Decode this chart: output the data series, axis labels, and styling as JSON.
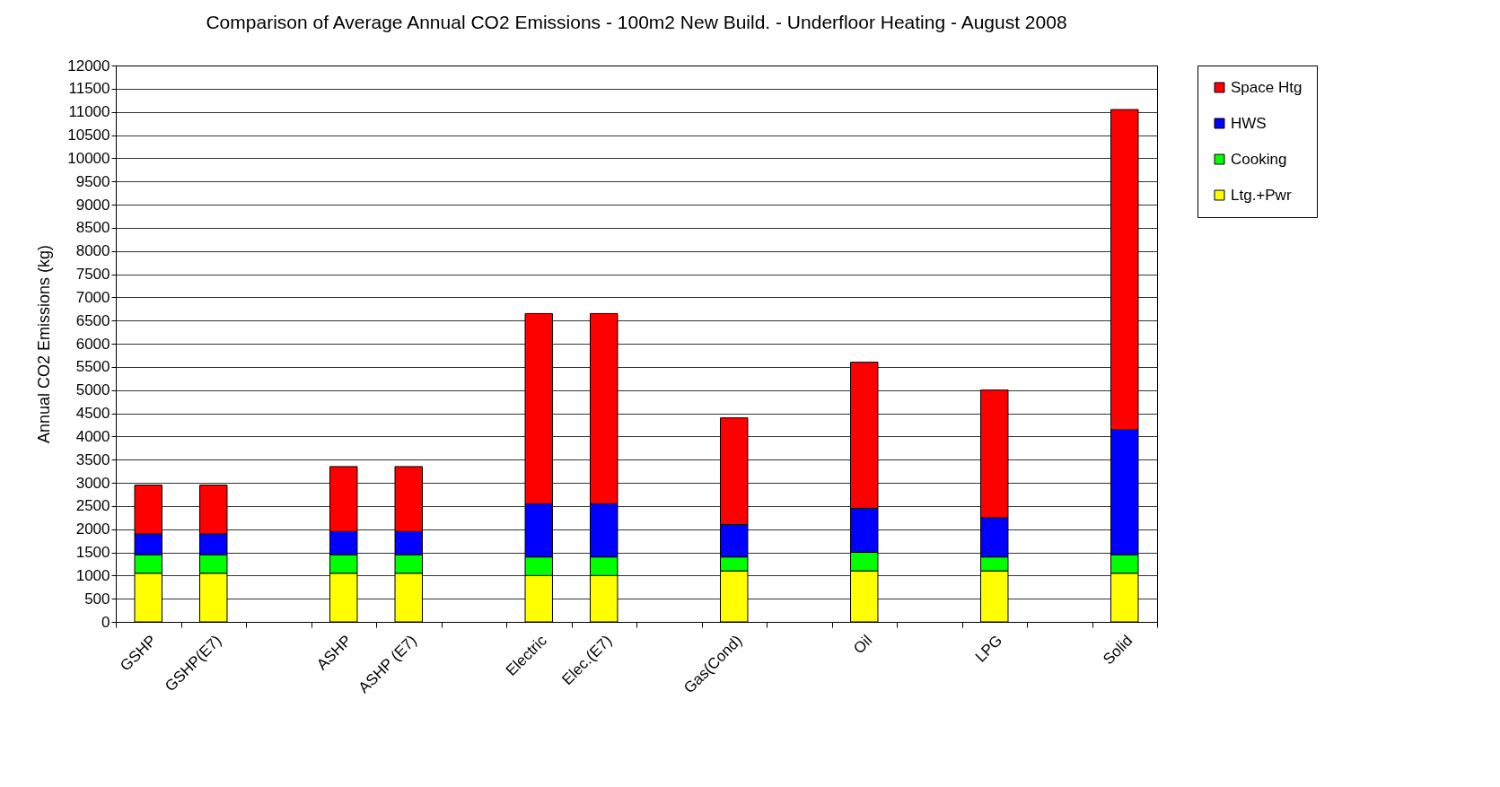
{
  "chart_data": {
    "type": "bar",
    "stacked": true,
    "title": "Comparison of Average Annual CO2 Emissions  - 100m2 New Build. - Underfloor Heating -  August 2008",
    "ylabel": "Annual CO2 Emissions  (kg)",
    "categories": [
      "GSHP",
      "GSHP(E7)",
      null,
      "ASHP",
      "ASHP (E7)",
      null,
      "Electric",
      "Elec.(E7)",
      null,
      "Gas(Cond)",
      null,
      "Oil",
      null,
      "LPG",
      null,
      "Solid"
    ],
    "series": [
      {
        "name": "Ltg.+Pwr",
        "color": "#ffff00",
        "values": [
          1050,
          1050,
          null,
          1050,
          1050,
          null,
          1000,
          1000,
          null,
          1100,
          null,
          1100,
          null,
          1100,
          null,
          1050
        ]
      },
      {
        "name": "Cooking",
        "color": "#00ff00",
        "values": [
          400,
          400,
          null,
          400,
          400,
          null,
          400,
          400,
          null,
          300,
          null,
          400,
          null,
          300,
          null,
          400
        ]
      },
      {
        "name": "HWS",
        "color": "#0000ff",
        "values": [
          450,
          450,
          null,
          500,
          500,
          null,
          1150,
          1150,
          null,
          700,
          null,
          950,
          null,
          850,
          null,
          2700
        ]
      },
      {
        "name": "Space Htg",
        "color": "#ff0000",
        "values": [
          1050,
          1050,
          null,
          1400,
          1400,
          null,
          4100,
          4100,
          null,
          2300,
          null,
          3150,
          null,
          2750,
          null,
          6900
        ]
      }
    ],
    "ylim": [
      0,
      12000
    ],
    "yticks": [
      0,
      500,
      1000,
      1500,
      2000,
      2500,
      3000,
      3500,
      4000,
      4500,
      5000,
      5500,
      6000,
      6500,
      7000,
      7500,
      8000,
      8500,
      9000,
      9500,
      10000,
      10500,
      11000,
      11500,
      12000
    ],
    "grid": "y",
    "legend": "right"
  }
}
